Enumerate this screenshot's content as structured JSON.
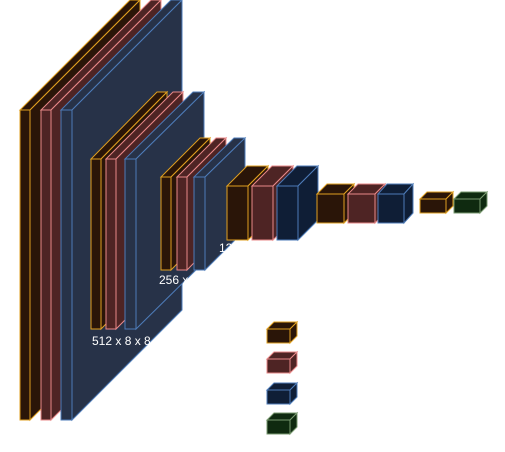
{
  "diagram": {
    "layer_labels": [
      "512 x 8 x 8",
      "256 x",
      "12"
    ],
    "layer_types": [
      {
        "name": "brown",
        "color": "#2a1508"
      },
      {
        "name": "red",
        "color": "#4e2424"
      },
      {
        "name": "navy",
        "color": "#0f1e36"
      },
      {
        "name": "green",
        "color": "#0f2a10"
      }
    ],
    "border_colors": {
      "brown": "#e0a020",
      "red": "#e88888",
      "navy": "#4d7bb8",
      "green": "#7a9a70"
    }
  }
}
